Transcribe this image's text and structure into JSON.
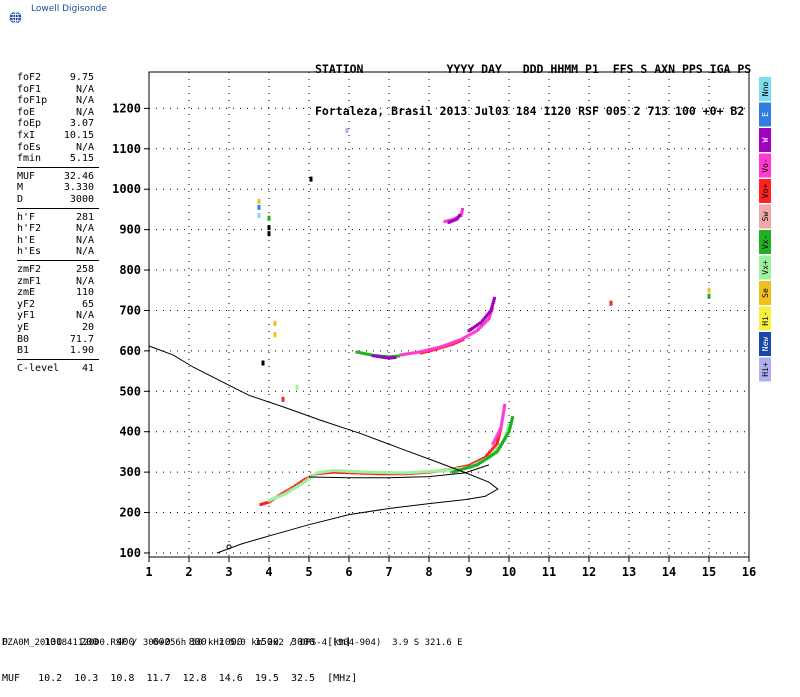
{
  "logo": {
    "text": "Lowell Digisonde",
    "color": "#1b4fa0"
  },
  "header": {
    "line1": "STATION            YYYY DAY   DDD HHMM P1  FFS S AXN PPS IGA PS",
    "line2": "Fortaleza, Brasil 2013 Jul03 184 1120 RSF 005 2 713 100 +0+ B2"
  },
  "params": [
    {
      "label": "foF2",
      "value": "9.75"
    },
    {
      "label": "foF1",
      "value": "N/A"
    },
    {
      "label": "foF1p",
      "value": "N/A"
    },
    {
      "label": "foE",
      "value": "N/A"
    },
    {
      "label": "foEp",
      "value": "3.07"
    },
    {
      "label": "fxI",
      "value": "10.15"
    },
    {
      "label": "foEs",
      "value": "N/A"
    },
    {
      "label": "fmin",
      "value": "5.15"
    },
    {
      "sep": true
    },
    {
      "label": "MUF",
      "value": "32.46"
    },
    {
      "label": "M",
      "value": "3.330"
    },
    {
      "label": "D",
      "value": "3000"
    },
    {
      "sep": true
    },
    {
      "label": "h'F",
      "value": "281"
    },
    {
      "label": "h'F2",
      "value": "N/A"
    },
    {
      "label": "h'E",
      "value": "N/A"
    },
    {
      "label": "h'Es",
      "value": "N/A"
    },
    {
      "sep": true
    },
    {
      "label": "zmF2",
      "value": "258"
    },
    {
      "label": "zmF1",
      "value": "N/A"
    },
    {
      "label": "zmE",
      "value": "110"
    },
    {
      "label": "yF2",
      "value": "65"
    },
    {
      "label": "yF1",
      "value": "N/A"
    },
    {
      "label": "yE",
      "value": "20"
    },
    {
      "label": "B0",
      "value": "71.7"
    },
    {
      "label": "B1",
      "value": "1.90"
    },
    {
      "sep": true
    },
    {
      "label": "C-level",
      "value": "41"
    }
  ],
  "legend": [
    {
      "label": "Nno",
      "color": "#7fdcf0"
    },
    {
      "label": "E",
      "color": "#2f7ee0"
    },
    {
      "label": "W",
      "color": "#a000c0"
    },
    {
      "label": "Vo-",
      "color": "#ff3ad0"
    },
    {
      "label": "Vo+",
      "color": "#ff2020"
    },
    {
      "label": "Sw",
      "color": "#f0a8a8"
    },
    {
      "label": "Vx-",
      "color": "#20b020"
    },
    {
      "label": "Vx+",
      "color": "#9ef09e"
    },
    {
      "label": "Se",
      "color": "#f0c020"
    },
    {
      "label": "Hi-",
      "color": "#f8f040"
    },
    {
      "label": "New",
      "color": "#1848a8"
    },
    {
      "label": "Hi+",
      "color": "#b0b0f0"
    }
  ],
  "bottom_table": {
    "d_label": "D",
    "d_values": [
      "100",
      "200",
      "400",
      "600",
      "800",
      "1000",
      "1500",
      "3000"
    ],
    "d_unit": "[km]",
    "muf_label": "MUF",
    "muf_values": [
      "10.2",
      "10.3",
      "10.8",
      "11.7",
      "12.8",
      "14.6",
      "19.5",
      "32.5"
    ],
    "muf_unit": "[MHz]"
  },
  "footer": "FZA0M_2013184112000.RSF / 300+256h 50 kHz 5.0 km 2x2 / DPS-4 (904-904)  3.9 S 321.6 E",
  "chart_data": {
    "type": "scatter",
    "title": "",
    "xlabel": "",
    "ylabel": "",
    "xlim": [
      1,
      16
    ],
    "ylim": [
      90,
      1290
    ],
    "x_ticks": [
      1,
      2,
      3,
      4,
      5,
      6,
      7,
      8,
      9,
      10,
      11,
      12,
      13,
      14,
      15,
      16
    ],
    "y_ticks": [
      100,
      200,
      300,
      400,
      500,
      600,
      700,
      800,
      900,
      1000,
      1100,
      1200
    ],
    "grid": true,
    "series": [
      {
        "kind": "trace",
        "color": "#ff2020",
        "points": [
          [
            3.8,
            220
          ],
          [
            4.0,
            226
          ],
          [
            4.3,
            245
          ],
          [
            4.6,
            262
          ],
          [
            4.9,
            282
          ],
          [
            5.2,
            296
          ],
          [
            5.6,
            300
          ],
          [
            6.2,
            298
          ],
          [
            6.8,
            296
          ],
          [
            7.4,
            296
          ],
          [
            8.0,
            300
          ],
          [
            8.5,
            306
          ],
          [
            9.0,
            316
          ],
          [
            9.4,
            336
          ],
          [
            9.7,
            370
          ],
          [
            9.8,
            410
          ]
        ]
      },
      {
        "kind": "trace",
        "color": "#9ef09e",
        "points": [
          [
            4.0,
            230
          ],
          [
            4.4,
            246
          ],
          [
            4.8,
            270
          ],
          [
            5.2,
            298
          ],
          [
            5.6,
            304
          ],
          [
            6.4,
            300
          ],
          [
            7.4,
            298
          ],
          [
            8.4,
            304
          ],
          [
            9.0,
            312
          ],
          [
            9.5,
            336
          ],
          [
            9.9,
            380
          ],
          [
            10.0,
            420
          ]
        ]
      },
      {
        "kind": "trace",
        "color": "#20b020",
        "points": [
          [
            8.6,
            300
          ],
          [
            9.2,
            318
          ],
          [
            9.7,
            350
          ],
          [
            10.0,
            400
          ],
          [
            10.1,
            440
          ]
        ]
      },
      {
        "kind": "trace",
        "color": "#ff3ad0",
        "points": [
          [
            9.6,
            370
          ],
          [
            9.8,
            410
          ],
          [
            9.85,
            440
          ],
          [
            9.9,
            470
          ]
        ]
      },
      {
        "kind": "trace",
        "color": "#ff2020",
        "points": [
          [
            7.8,
            595
          ],
          [
            8.2,
            605
          ],
          [
            8.6,
            617
          ],
          [
            8.9,
            630
          ]
        ]
      },
      {
        "kind": "trace",
        "color": "#ff3ad0",
        "points": [
          [
            7.3,
            590
          ],
          [
            7.8,
            598
          ],
          [
            8.3,
            610
          ],
          [
            8.8,
            628
          ],
          [
            9.2,
            650
          ],
          [
            9.5,
            680
          ],
          [
            9.6,
            710
          ]
        ]
      },
      {
        "kind": "trace",
        "color": "#a000c0",
        "points": [
          [
            9.0,
            650
          ],
          [
            9.3,
            670
          ],
          [
            9.55,
            700
          ],
          [
            9.65,
            735
          ]
        ]
      },
      {
        "kind": "trace",
        "color": "#20b020",
        "points": [
          [
            6.2,
            597
          ],
          [
            6.6,
            589
          ],
          [
            7.0,
            585
          ],
          [
            7.3,
            588
          ]
        ]
      },
      {
        "kind": "trace",
        "color": "#a000c0",
        "points": [
          [
            6.6,
            588
          ],
          [
            7.0,
            582
          ],
          [
            7.2,
            584
          ]
        ]
      },
      {
        "kind": "trace",
        "color": "#ff3ad0",
        "points": [
          [
            8.4,
            920
          ],
          [
            8.6,
            925
          ],
          [
            8.8,
            935
          ],
          [
            8.85,
            955
          ]
        ]
      },
      {
        "kind": "trace",
        "color": "#a000c0",
        "points": [
          [
            8.5,
            918
          ],
          [
            8.7,
            926
          ],
          [
            8.8,
            940
          ]
        ]
      }
    ],
    "dots": [
      {
        "x": 3.75,
        "y": 970,
        "color": "#f0c020"
      },
      {
        "x": 3.75,
        "y": 955,
        "color": "#2f7ee0"
      },
      {
        "x": 3.75,
        "y": 935,
        "color": "#7fdcf0"
      },
      {
        "x": 4.0,
        "y": 928,
        "color": "#20b020"
      },
      {
        "x": 4.0,
        "y": 905,
        "color": "#000000"
      },
      {
        "x": 4.0,
        "y": 890,
        "color": "#000000"
      },
      {
        "x": 4.15,
        "y": 668,
        "color": "#f0c020"
      },
      {
        "x": 4.15,
        "y": 640,
        "color": "#f0c020"
      },
      {
        "x": 4.35,
        "y": 480,
        "color": "#ff2020"
      },
      {
        "x": 3.85,
        "y": 570,
        "color": "#000000"
      },
      {
        "x": 4.7,
        "y": 510,
        "color": "#9ef09e"
      },
      {
        "x": 5.05,
        "y": 1025,
        "color": "#000000"
      },
      {
        "x": 5.95,
        "y": 1145,
        "color": "#b0b0f0"
      },
      {
        "x": 12.55,
        "y": 718,
        "color": "#ff2020"
      },
      {
        "x": 15.0,
        "y": 750,
        "color": "#f0c020"
      },
      {
        "x": 15.0,
        "y": 735,
        "color": "#20b020"
      }
    ],
    "profile": {
      "kind": "electron-density-profile",
      "color": "#000000",
      "points": [
        [
          2.7,
          100
        ],
        [
          3.3,
          122
        ],
        [
          4.1,
          145
        ],
        [
          5.0,
          170
        ],
        [
          6.0,
          195
        ],
        [
          7.0,
          210
        ],
        [
          8.0,
          222
        ],
        [
          8.9,
          232
        ],
        [
          9.4,
          240
        ],
        [
          9.72,
          258
        ],
        [
          9.5,
          275
        ],
        [
          9.0,
          295
        ],
        [
          8.2,
          325
        ],
        [
          7.3,
          358
        ],
        [
          6.3,
          395
        ],
        [
          5.3,
          428
        ],
        [
          4.4,
          460
        ],
        [
          3.5,
          490
        ],
        [
          2.7,
          530
        ],
        [
          2.1,
          560
        ],
        [
          1.6,
          590
        ],
        [
          1.0,
          612
        ]
      ]
    },
    "trace_fit": {
      "color": "#000000",
      "points": [
        [
          5.0,
          288
        ],
        [
          6.0,
          286
        ],
        [
          7.0,
          286
        ],
        [
          8.0,
          289
        ],
        [
          8.9,
          298
        ],
        [
          9.5,
          318
        ]
      ]
    }
  }
}
